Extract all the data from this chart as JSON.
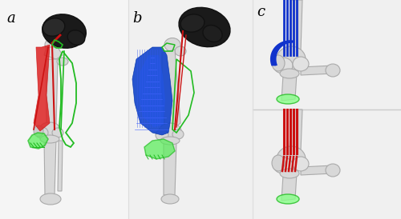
{
  "figure_width": 5.0,
  "figure_height": 2.74,
  "dpi": 100,
  "background_color": "#ffffff",
  "label_a": "a",
  "label_b": "b",
  "label_c": "c",
  "label_fontsize": 13,
  "bone_color": "#d8d8d8",
  "bone_edge": "#aaaaaa",
  "hip_dark": "#2a2a2a",
  "red_color": "#cc1111",
  "green_color": "#22bb22",
  "blue_color": "#1133cc",
  "green_fill": "#44dd44"
}
